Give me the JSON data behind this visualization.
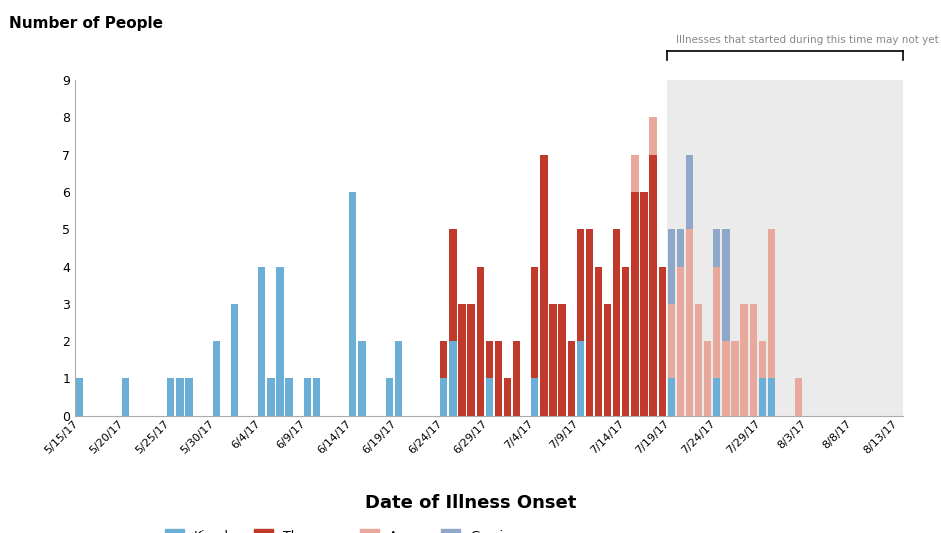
{
  "ylabel": "Number of People",
  "xlabel": "Date of Illness Onset",
  "ylim": [
    0,
    9
  ],
  "yticks": [
    0,
    1,
    2,
    3,
    4,
    5,
    6,
    7,
    8,
    9
  ],
  "colors": {
    "Kiambu": "#6BAED6",
    "Thompson": "#C0392B",
    "Agona": "#E8A89C",
    "Gaminara": "#8FA7C9"
  },
  "shade_start": "7/19/17",
  "shade_color": "#EBEBEB",
  "unreported_text": "Illnesses that started during this time may not yet be reported",
  "xtick_labels": [
    "5/15/17",
    "5/20/17",
    "5/25/17",
    "5/30/17",
    "6/4/17",
    "6/9/17",
    "6/14/17",
    "6/19/17",
    "6/24/17",
    "6/29/17",
    "7/4/17",
    "7/9/17",
    "7/14/17",
    "7/19/17",
    "7/24/17",
    "7/29/17",
    "8/3/17",
    "8/8/17",
    "8/13/17"
  ],
  "bars": [
    {
      "date": "5/15/17",
      "Kiambu": 1,
      "Thompson": 0,
      "Agona": 0,
      "Gaminara": 0
    },
    {
      "date": "5/16/17",
      "Kiambu": 0,
      "Thompson": 0,
      "Agona": 0,
      "Gaminara": 0
    },
    {
      "date": "5/17/17",
      "Kiambu": 0,
      "Thompson": 0,
      "Agona": 0,
      "Gaminara": 0
    },
    {
      "date": "5/18/17",
      "Kiambu": 0,
      "Thompson": 0,
      "Agona": 0,
      "Gaminara": 0
    },
    {
      "date": "5/19/17",
      "Kiambu": 0,
      "Thompson": 0,
      "Agona": 0,
      "Gaminara": 0
    },
    {
      "date": "5/20/17",
      "Kiambu": 1,
      "Thompson": 0,
      "Agona": 0,
      "Gaminara": 0
    },
    {
      "date": "5/21/17",
      "Kiambu": 0,
      "Thompson": 0,
      "Agona": 0,
      "Gaminara": 0
    },
    {
      "date": "5/22/17",
      "Kiambu": 0,
      "Thompson": 0,
      "Agona": 0,
      "Gaminara": 0
    },
    {
      "date": "5/23/17",
      "Kiambu": 0,
      "Thompson": 0,
      "Agona": 0,
      "Gaminara": 0
    },
    {
      "date": "5/24/17",
      "Kiambu": 0,
      "Thompson": 0,
      "Agona": 0,
      "Gaminara": 0
    },
    {
      "date": "5/25/17",
      "Kiambu": 1,
      "Thompson": 0,
      "Agona": 0,
      "Gaminara": 0
    },
    {
      "date": "5/26/17",
      "Kiambu": 1,
      "Thompson": 0,
      "Agona": 0,
      "Gaminara": 0
    },
    {
      "date": "5/27/17",
      "Kiambu": 1,
      "Thompson": 0,
      "Agona": 0,
      "Gaminara": 0
    },
    {
      "date": "5/28/17",
      "Kiambu": 0,
      "Thompson": 0,
      "Agona": 0,
      "Gaminara": 0
    },
    {
      "date": "5/29/17",
      "Kiambu": 0,
      "Thompson": 0,
      "Agona": 0,
      "Gaminara": 0
    },
    {
      "date": "5/30/17",
      "Kiambu": 2,
      "Thompson": 0,
      "Agona": 0,
      "Gaminara": 0
    },
    {
      "date": "5/31/17",
      "Kiambu": 0,
      "Thompson": 0,
      "Agona": 0,
      "Gaminara": 0
    },
    {
      "date": "6/1/17",
      "Kiambu": 3,
      "Thompson": 0,
      "Agona": 0,
      "Gaminara": 0
    },
    {
      "date": "6/2/17",
      "Kiambu": 0,
      "Thompson": 0,
      "Agona": 0,
      "Gaminara": 0
    },
    {
      "date": "6/3/17",
      "Kiambu": 0,
      "Thompson": 0,
      "Agona": 0,
      "Gaminara": 0
    },
    {
      "date": "6/4/17",
      "Kiambu": 4,
      "Thompson": 0,
      "Agona": 0,
      "Gaminara": 0
    },
    {
      "date": "6/5/17",
      "Kiambu": 1,
      "Thompson": 0,
      "Agona": 0,
      "Gaminara": 0
    },
    {
      "date": "6/6/17",
      "Kiambu": 4,
      "Thompson": 0,
      "Agona": 0,
      "Gaminara": 0
    },
    {
      "date": "6/7/17",
      "Kiambu": 1,
      "Thompson": 0,
      "Agona": 0,
      "Gaminara": 0
    },
    {
      "date": "6/8/17",
      "Kiambu": 0,
      "Thompson": 0,
      "Agona": 0,
      "Gaminara": 0
    },
    {
      "date": "6/9/17",
      "Kiambu": 1,
      "Thompson": 0,
      "Agona": 0,
      "Gaminara": 0
    },
    {
      "date": "6/10/17",
      "Kiambu": 1,
      "Thompson": 0,
      "Agona": 0,
      "Gaminara": 0
    },
    {
      "date": "6/11/17",
      "Kiambu": 0,
      "Thompson": 0,
      "Agona": 0,
      "Gaminara": 0
    },
    {
      "date": "6/12/17",
      "Kiambu": 0,
      "Thompson": 0,
      "Agona": 0,
      "Gaminara": 0
    },
    {
      "date": "6/13/17",
      "Kiambu": 0,
      "Thompson": 0,
      "Agona": 0,
      "Gaminara": 0
    },
    {
      "date": "6/14/17",
      "Kiambu": 6,
      "Thompson": 0,
      "Agona": 0,
      "Gaminara": 0
    },
    {
      "date": "6/15/17",
      "Kiambu": 2,
      "Thompson": 0,
      "Agona": 0,
      "Gaminara": 0
    },
    {
      "date": "6/16/17",
      "Kiambu": 0,
      "Thompson": 0,
      "Agona": 0,
      "Gaminara": 0
    },
    {
      "date": "6/17/17",
      "Kiambu": 0,
      "Thompson": 0,
      "Agona": 0,
      "Gaminara": 0
    },
    {
      "date": "6/18/17",
      "Kiambu": 1,
      "Thompson": 0,
      "Agona": 0,
      "Gaminara": 0
    },
    {
      "date": "6/19/17",
      "Kiambu": 2,
      "Thompson": 0,
      "Agona": 0,
      "Gaminara": 0
    },
    {
      "date": "6/20/17",
      "Kiambu": 0,
      "Thompson": 0,
      "Agona": 0,
      "Gaminara": 0
    },
    {
      "date": "6/21/17",
      "Kiambu": 0,
      "Thompson": 0,
      "Agona": 0,
      "Gaminara": 0
    },
    {
      "date": "6/22/17",
      "Kiambu": 0,
      "Thompson": 0,
      "Agona": 0,
      "Gaminara": 0
    },
    {
      "date": "6/23/17",
      "Kiambu": 0,
      "Thompson": 0,
      "Agona": 0,
      "Gaminara": 0
    },
    {
      "date": "6/24/17",
      "Kiambu": 1,
      "Thompson": 1,
      "Agona": 0,
      "Gaminara": 0
    },
    {
      "date": "6/25/17",
      "Kiambu": 2,
      "Thompson": 3,
      "Agona": 0,
      "Gaminara": 0
    },
    {
      "date": "6/26/17",
      "Kiambu": 0,
      "Thompson": 3,
      "Agona": 0,
      "Gaminara": 0
    },
    {
      "date": "6/27/17",
      "Kiambu": 0,
      "Thompson": 3,
      "Agona": 0,
      "Gaminara": 0
    },
    {
      "date": "6/28/17",
      "Kiambu": 0,
      "Thompson": 4,
      "Agona": 0,
      "Gaminara": 0
    },
    {
      "date": "6/29/17",
      "Kiambu": 1,
      "Thompson": 1,
      "Agona": 0,
      "Gaminara": 0
    },
    {
      "date": "6/30/17",
      "Kiambu": 0,
      "Thompson": 2,
      "Agona": 0,
      "Gaminara": 0
    },
    {
      "date": "7/1/17",
      "Kiambu": 0,
      "Thompson": 1,
      "Agona": 0,
      "Gaminara": 0
    },
    {
      "date": "7/2/17",
      "Kiambu": 0,
      "Thompson": 2,
      "Agona": 0,
      "Gaminara": 0
    },
    {
      "date": "7/3/17",
      "Kiambu": 0,
      "Thompson": 0,
      "Agona": 0,
      "Gaminara": 0
    },
    {
      "date": "7/4/17",
      "Kiambu": 1,
      "Thompson": 3,
      "Agona": 0,
      "Gaminara": 0
    },
    {
      "date": "7/5/17",
      "Kiambu": 0,
      "Thompson": 7,
      "Agona": 0,
      "Gaminara": 0
    },
    {
      "date": "7/6/17",
      "Kiambu": 0,
      "Thompson": 3,
      "Agona": 0,
      "Gaminara": 0
    },
    {
      "date": "7/7/17",
      "Kiambu": 0,
      "Thompson": 3,
      "Agona": 0,
      "Gaminara": 0
    },
    {
      "date": "7/8/17",
      "Kiambu": 0,
      "Thompson": 2,
      "Agona": 0,
      "Gaminara": 0
    },
    {
      "date": "7/9/17",
      "Kiambu": 2,
      "Thompson": 3,
      "Agona": 0,
      "Gaminara": 0
    },
    {
      "date": "7/10/17",
      "Kiambu": 0,
      "Thompson": 5,
      "Agona": 0,
      "Gaminara": 0
    },
    {
      "date": "7/11/17",
      "Kiambu": 0,
      "Thompson": 4,
      "Agona": 0,
      "Gaminara": 0
    },
    {
      "date": "7/12/17",
      "Kiambu": 0,
      "Thompson": 3,
      "Agona": 0,
      "Gaminara": 0
    },
    {
      "date": "7/13/17",
      "Kiambu": 0,
      "Thompson": 5,
      "Agona": 0,
      "Gaminara": 0
    },
    {
      "date": "7/14/17",
      "Kiambu": 0,
      "Thompson": 4,
      "Agona": 0,
      "Gaminara": 0
    },
    {
      "date": "7/15/17",
      "Kiambu": 0,
      "Thompson": 6,
      "Agona": 1,
      "Gaminara": 0
    },
    {
      "date": "7/16/17",
      "Kiambu": 0,
      "Thompson": 6,
      "Agona": 0,
      "Gaminara": 0
    },
    {
      "date": "7/17/17",
      "Kiambu": 0,
      "Thompson": 7,
      "Agona": 1,
      "Gaminara": 0
    },
    {
      "date": "7/18/17",
      "Kiambu": 0,
      "Thompson": 4,
      "Agona": 0,
      "Gaminara": 0
    },
    {
      "date": "7/19/17",
      "Kiambu": 1,
      "Thompson": 0,
      "Agona": 2,
      "Gaminara": 2
    },
    {
      "date": "7/20/17",
      "Kiambu": 0,
      "Thompson": 0,
      "Agona": 4,
      "Gaminara": 1
    },
    {
      "date": "7/21/17",
      "Kiambu": 0,
      "Thompson": 0,
      "Agona": 5,
      "Gaminara": 2
    },
    {
      "date": "7/22/17",
      "Kiambu": 0,
      "Thompson": 0,
      "Agona": 3,
      "Gaminara": 0
    },
    {
      "date": "7/23/17",
      "Kiambu": 0,
      "Thompson": 0,
      "Agona": 2,
      "Gaminara": 0
    },
    {
      "date": "7/24/17",
      "Kiambu": 1,
      "Thompson": 0,
      "Agona": 3,
      "Gaminara": 1
    },
    {
      "date": "7/25/17",
      "Kiambu": 0,
      "Thompson": 0,
      "Agona": 2,
      "Gaminara": 3
    },
    {
      "date": "7/26/17",
      "Kiambu": 0,
      "Thompson": 0,
      "Agona": 2,
      "Gaminara": 0
    },
    {
      "date": "7/27/17",
      "Kiambu": 0,
      "Thompson": 0,
      "Agona": 3,
      "Gaminara": 0
    },
    {
      "date": "7/28/17",
      "Kiambu": 0,
      "Thompson": 0,
      "Agona": 3,
      "Gaminara": 0
    },
    {
      "date": "7/29/17",
      "Kiambu": 1,
      "Thompson": 0,
      "Agona": 1,
      "Gaminara": 0
    },
    {
      "date": "7/30/17",
      "Kiambu": 1,
      "Thompson": 0,
      "Agona": 4,
      "Gaminara": 0
    },
    {
      "date": "7/31/17",
      "Kiambu": 0,
      "Thompson": 0,
      "Agona": 0,
      "Gaminara": 0
    },
    {
      "date": "8/1/17",
      "Kiambu": 0,
      "Thompson": 0,
      "Agona": 0,
      "Gaminara": 0
    },
    {
      "date": "8/2/17",
      "Kiambu": 0,
      "Thompson": 0,
      "Agona": 1,
      "Gaminara": 0
    },
    {
      "date": "8/3/17",
      "Kiambu": 0,
      "Thompson": 0,
      "Agona": 0,
      "Gaminara": 0
    },
    {
      "date": "8/4/17",
      "Kiambu": 0,
      "Thompson": 0,
      "Agona": 0,
      "Gaminara": 0
    },
    {
      "date": "8/5/17",
      "Kiambu": 0,
      "Thompson": 0,
      "Agona": 0,
      "Gaminara": 0
    },
    {
      "date": "8/6/17",
      "Kiambu": 0,
      "Thompson": 0,
      "Agona": 0,
      "Gaminara": 0
    },
    {
      "date": "8/7/17",
      "Kiambu": 0,
      "Thompson": 0,
      "Agona": 0,
      "Gaminara": 0
    },
    {
      "date": "8/8/17",
      "Kiambu": 0,
      "Thompson": 0,
      "Agona": 0,
      "Gaminara": 0
    },
    {
      "date": "8/9/17",
      "Kiambu": 0,
      "Thompson": 0,
      "Agona": 0,
      "Gaminara": 0
    },
    {
      "date": "8/10/17",
      "Kiambu": 0,
      "Thompson": 0,
      "Agona": 0,
      "Gaminara": 0
    },
    {
      "date": "8/11/17",
      "Kiambu": 0,
      "Thompson": 0,
      "Agona": 0,
      "Gaminara": 0
    },
    {
      "date": "8/12/17",
      "Kiambu": 0,
      "Thompson": 0,
      "Agona": 0,
      "Gaminara": 0
    },
    {
      "date": "8/13/17",
      "Kiambu": 0,
      "Thompson": 0,
      "Agona": 0,
      "Gaminara": 0
    }
  ]
}
